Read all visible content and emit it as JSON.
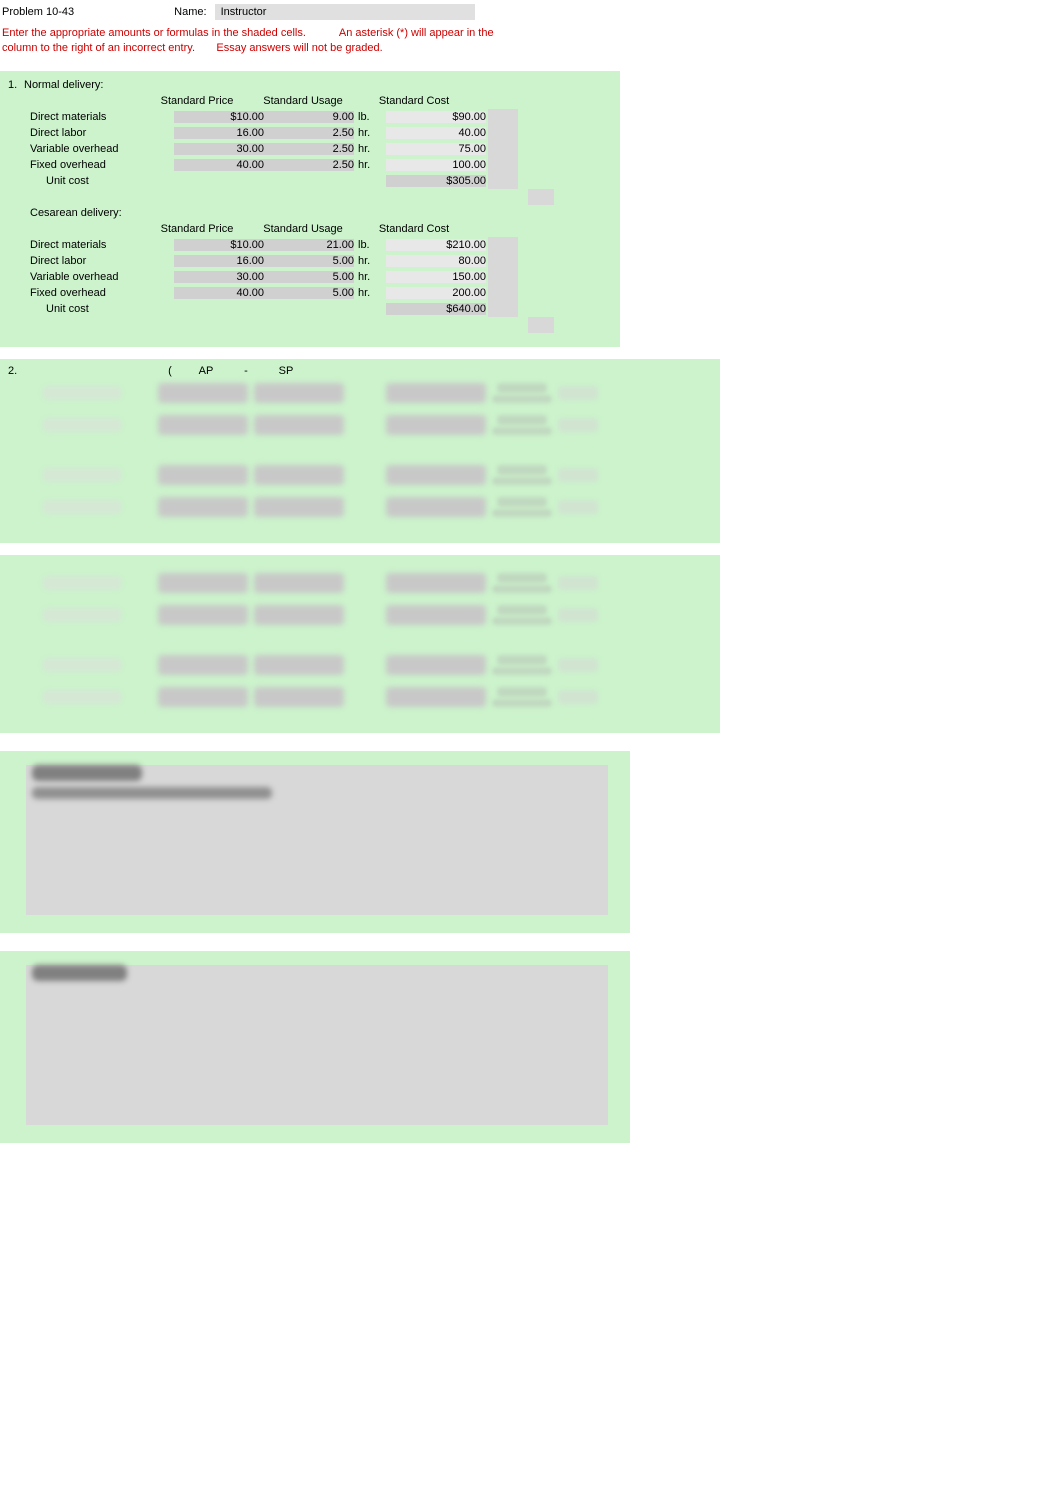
{
  "header": {
    "problem": "Problem 10-43",
    "name_label": "Name:",
    "name_value": "Instructor"
  },
  "instructions": {
    "line1": "Enter the appropriate amounts or formulas in the shaded cells.",
    "line1b": "An asterisk (*) will appear in the",
    "line2": "column to the right of an incorrect entry.",
    "line2b": "Essay answers will not be graded."
  },
  "q1": {
    "num": "1.",
    "normal_label": "Normal delivery:",
    "cesarean_label": "Cesarean delivery:",
    "headers": {
      "price": "Standard Price",
      "usage": "Standard Usage",
      "cost": "Standard Cost"
    },
    "rows_normal": [
      {
        "label": "Direct materials",
        "price": "$10.00",
        "usage": "9.00",
        "unit": "lb.",
        "cost": "$90.00"
      },
      {
        "label": "Direct labor",
        "price": "16.00",
        "usage": "2.50",
        "unit": "hr.",
        "cost": "40.00"
      },
      {
        "label": "Variable overhead",
        "price": "30.00",
        "usage": "2.50",
        "unit": "hr.",
        "cost": "75.00"
      },
      {
        "label": "Fixed overhead",
        "price": "40.00",
        "usage": "2.50",
        "unit": "hr.",
        "cost": "100.00"
      }
    ],
    "unit_cost_label": "Unit cost",
    "unit_cost_normal": "$305.00",
    "rows_cesarean": [
      {
        "label": "Direct materials",
        "price": "$10.00",
        "usage": "21.00",
        "unit": "lb.",
        "cost": "$210.00"
      },
      {
        "label": "Direct labor",
        "price": "16.00",
        "usage": "5.00",
        "unit": "hr.",
        "cost": "80.00"
      },
      {
        "label": "Variable overhead",
        "price": "30.00",
        "usage": "5.00",
        "unit": "hr.",
        "cost": "150.00"
      },
      {
        "label": "Fixed overhead",
        "price": "40.00",
        "usage": "5.00",
        "unit": "hr.",
        "cost": "200.00"
      }
    ],
    "unit_cost_cesarean": "$640.00"
  },
  "q2": {
    "num": "2.",
    "paren_open": "(",
    "ap": "AP",
    "dash": "-",
    "sp": "SP"
  },
  "colors": {
    "section_bg": "#ccf3cc",
    "shaded_bg": "#d0d0d0",
    "instruction_text": "#cc0000",
    "essay_bg": "#d8d8d8"
  }
}
